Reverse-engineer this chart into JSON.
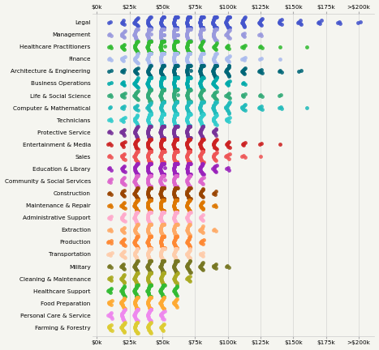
{
  "categories": [
    "Legal",
    "Management",
    "Healthcare Practitioners",
    "Finance",
    "Architecture & Engineering",
    "Business Operations",
    "Life & Social Science",
    "Computer & Mathematical",
    "Technicians",
    "Protective Service",
    "Entertainment & Media",
    "Sales",
    "Education & Library",
    "Community & Social Services",
    "Construction",
    "Maintenance & Repair",
    "Administrative Support",
    "Extraction",
    "Production",
    "Transportation",
    "Military",
    "Cleaning & Maintenance",
    "Healthcare Support",
    "Food Preparation",
    "Personal Care & Service",
    "Farming & Forestry"
  ],
  "colors": [
    "#4455cc",
    "#9999dd",
    "#33bb33",
    "#aabbee",
    "#006677",
    "#00aaaa",
    "#33aa77",
    "#22bbbb",
    "#33cccc",
    "#773399",
    "#cc2222",
    "#ee5555",
    "#9922bb",
    "#dd66cc",
    "#994400",
    "#dd7700",
    "#ffaacc",
    "#ffaa66",
    "#ff8833",
    "#ffccaa",
    "#777722",
    "#aaaa22",
    "#33bb33",
    "#ffaa33",
    "#ee88ee",
    "#ddcc33"
  ],
  "x_ticks": [
    0,
    25000,
    50000,
    75000,
    100000,
    125000,
    150000,
    175000,
    200000
  ],
  "x_labels": [
    "$0k",
    "$25k",
    "$50k",
    "$75k",
    "$100k",
    "$125k",
    "$150k",
    "$175k",
    ">$200k"
  ],
  "background_color": "#f5f5f0",
  "distributions": {
    "Legal": {
      "centers": [
        10000,
        20000,
        30000,
        40000,
        50000,
        60000,
        70000,
        80000,
        90000,
        100000,
        112000,
        125000,
        140000,
        155000,
        170000,
        185000,
        200000
      ],
      "counts": [
        2,
        5,
        10,
        15,
        20,
        28,
        35,
        32,
        25,
        20,
        12,
        8,
        6,
        5,
        4,
        3,
        2
      ]
    },
    "Management": {
      "centers": [
        10000,
        20000,
        30000,
        40000,
        50000,
        60000,
        70000,
        80000,
        90000,
        100000,
        112000,
        125000
      ],
      "counts": [
        3,
        8,
        18,
        30,
        42,
        45,
        38,
        28,
        18,
        10,
        5,
        3
      ]
    },
    "Healthcare Practitioners": {
      "centers": [
        10000,
        20000,
        30000,
        40000,
        50000,
        60000,
        70000,
        80000,
        90000,
        100000,
        112000,
        125000,
        140000,
        160000
      ],
      "counts": [
        3,
        7,
        15,
        25,
        32,
        30,
        22,
        14,
        8,
        5,
        4,
        3,
        1,
        1
      ]
    },
    "Finance": {
      "centers": [
        10000,
        20000,
        30000,
        40000,
        50000,
        60000,
        70000,
        80000,
        90000,
        100000,
        112000,
        125000,
        140000
      ],
      "counts": [
        3,
        6,
        12,
        22,
        32,
        38,
        32,
        22,
        14,
        8,
        4,
        2,
        1
      ]
    },
    "Architecture & Engineering": {
      "centers": [
        10000,
        20000,
        30000,
        40000,
        50000,
        60000,
        70000,
        80000,
        90000,
        100000,
        112000,
        125000,
        140000,
        155000
      ],
      "counts": [
        2,
        4,
        8,
        15,
        22,
        30,
        35,
        30,
        22,
        14,
        8,
        5,
        3,
        2
      ]
    },
    "Business Operations": {
      "centers": [
        10000,
        20000,
        30000,
        40000,
        50000,
        60000,
        70000,
        80000,
        90000,
        100000,
        112000
      ],
      "counts": [
        2,
        5,
        12,
        22,
        33,
        38,
        30,
        20,
        12,
        6,
        3
      ]
    },
    "Life & Social Science": {
      "centers": [
        10000,
        20000,
        30000,
        40000,
        50000,
        60000,
        70000,
        80000,
        90000,
        100000,
        112000,
        125000,
        140000
      ],
      "counts": [
        3,
        6,
        12,
        20,
        28,
        30,
        25,
        18,
        11,
        7,
        4,
        3,
        2
      ]
    },
    "Computer & Mathematical": {
      "centers": [
        10000,
        20000,
        30000,
        40000,
        50000,
        60000,
        70000,
        80000,
        90000,
        100000,
        112000,
        125000,
        140000,
        160000
      ],
      "counts": [
        2,
        4,
        7,
        12,
        18,
        24,
        28,
        26,
        20,
        14,
        8,
        5,
        3,
        1
      ]
    },
    "Technicians": {
      "centers": [
        10000,
        20000,
        30000,
        40000,
        50000,
        60000,
        70000,
        80000,
        90000,
        100000
      ],
      "counts": [
        3,
        6,
        12,
        20,
        28,
        33,
        28,
        20,
        12,
        6
      ]
    },
    "Protective Service": {
      "centers": [
        10000,
        20000,
        30000,
        40000,
        50000,
        60000,
        70000,
        80000,
        90000
      ],
      "counts": [
        3,
        7,
        14,
        22,
        30,
        32,
        25,
        16,
        8
      ]
    },
    "Entertainment & Media": {
      "centers": [
        10000,
        20000,
        30000,
        40000,
        50000,
        60000,
        70000,
        80000,
        90000,
        100000,
        112000,
        125000,
        140000
      ],
      "counts": [
        3,
        6,
        12,
        18,
        24,
        28,
        24,
        18,
        12,
        7,
        4,
        2,
        1
      ]
    },
    "Sales": {
      "centers": [
        10000,
        20000,
        30000,
        40000,
        50000,
        60000,
        70000,
        80000,
        90000,
        100000,
        112000,
        125000
      ],
      "counts": [
        3,
        7,
        14,
        22,
        28,
        30,
        24,
        17,
        10,
        6,
        3,
        1
      ]
    },
    "Education & Library": {
      "centers": [
        10000,
        20000,
        30000,
        40000,
        50000,
        60000,
        70000,
        80000,
        90000,
        100000
      ],
      "counts": [
        3,
        7,
        15,
        24,
        30,
        32,
        24,
        15,
        8,
        3
      ]
    },
    "Community & Social Services": {
      "centers": [
        10000,
        20000,
        30000,
        40000,
        50000,
        60000,
        70000,
        80000
      ],
      "counts": [
        4,
        9,
        17,
        25,
        28,
        24,
        16,
        8
      ]
    },
    "Construction": {
      "centers": [
        10000,
        20000,
        30000,
        40000,
        50000,
        60000,
        70000,
        80000,
        90000
      ],
      "counts": [
        3,
        7,
        14,
        22,
        28,
        26,
        18,
        10,
        4
      ]
    },
    "Maintenance & Repair": {
      "centers": [
        10000,
        20000,
        30000,
        40000,
        50000,
        60000,
        70000,
        80000,
        90000
      ],
      "counts": [
        3,
        7,
        14,
        22,
        27,
        24,
        16,
        9,
        3
      ]
    },
    "Administrative Support": {
      "centers": [
        10000,
        20000,
        30000,
        40000,
        50000,
        60000,
        70000,
        80000
      ],
      "counts": [
        4,
        9,
        17,
        24,
        26,
        22,
        14,
        7
      ]
    },
    "Extraction": {
      "centers": [
        10000,
        20000,
        30000,
        40000,
        50000,
        60000,
        70000,
        80000,
        90000
      ],
      "counts": [
        3,
        7,
        14,
        21,
        25,
        22,
        15,
        8,
        3
      ]
    },
    "Production": {
      "centers": [
        10000,
        20000,
        30000,
        40000,
        50000,
        60000,
        70000,
        80000
      ],
      "counts": [
        4,
        9,
        16,
        22,
        25,
        20,
        13,
        6
      ]
    },
    "Transportation": {
      "centers": [
        10000,
        20000,
        30000,
        40000,
        50000,
        60000,
        70000,
        80000
      ],
      "counts": [
        4,
        9,
        16,
        22,
        24,
        19,
        12,
        5
      ]
    },
    "Military": {
      "centers": [
        10000,
        20000,
        30000,
        40000,
        50000,
        60000,
        70000,
        80000,
        90000,
        100000
      ],
      "counts": [
        3,
        7,
        14,
        20,
        22,
        20,
        15,
        10,
        6,
        3
      ]
    },
    "Cleaning & Maintenance": {
      "centers": [
        10000,
        20000,
        30000,
        40000,
        50000,
        60000,
        70000
      ],
      "counts": [
        5,
        11,
        19,
        22,
        20,
        14,
        7
      ]
    },
    "Healthcare Support": {
      "centers": [
        10000,
        20000,
        30000,
        40000,
        50000,
        60000
      ],
      "counts": [
        6,
        13,
        20,
        22,
        18,
        12
      ]
    },
    "Food Preparation": {
      "centers": [
        10000,
        20000,
        30000,
        40000,
        50000,
        60000
      ],
      "counts": [
        6,
        13,
        18,
        20,
        16,
        10
      ]
    },
    "Personal Care & Service": {
      "centers": [
        10000,
        20000,
        30000,
        40000,
        50000
      ],
      "counts": [
        7,
        14,
        18,
        16,
        10
      ]
    },
    "Farming & Forestry": {
      "centers": [
        10000,
        20000,
        30000,
        40000,
        50000
      ],
      "counts": [
        7,
        12,
        15,
        13,
        8
      ]
    }
  }
}
